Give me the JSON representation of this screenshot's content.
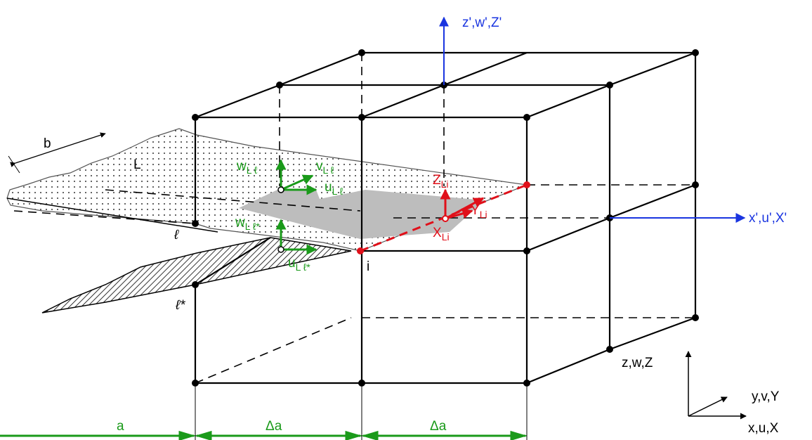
{
  "axes": {
    "global_z": "z',w',Z'",
    "global_x": "x',u',X'",
    "local_z": "z,w,Z",
    "local_y": "y,v,Y",
    "local_x": "x,u,X"
  },
  "dimensions": {
    "a": "a",
    "delta_a_1": "Δa",
    "delta_a_2": "Δa",
    "b": "b"
  },
  "labels": {
    "surface": "L",
    "line": "ℓ",
    "line_star": "ℓ*",
    "node": "i"
  },
  "vectors": {
    "w_l": {
      "main": "w",
      "sub": "L ℓ"
    },
    "v_l": {
      "main": "v",
      "sub": "L ℓ"
    },
    "u_l": {
      "main": "u",
      "sub": "L ℓ"
    },
    "w_ls": {
      "main": "w",
      "sub": "L ℓ*"
    },
    "u_ls": {
      "main": "u",
      "sub": "L ℓ*"
    },
    "z_li": {
      "main": "Z",
      "sub": "Li"
    },
    "y_li": {
      "main": "Y",
      "sub": "Li"
    },
    "x_li": {
      "main": "X",
      "sub": "Li"
    }
  }
}
